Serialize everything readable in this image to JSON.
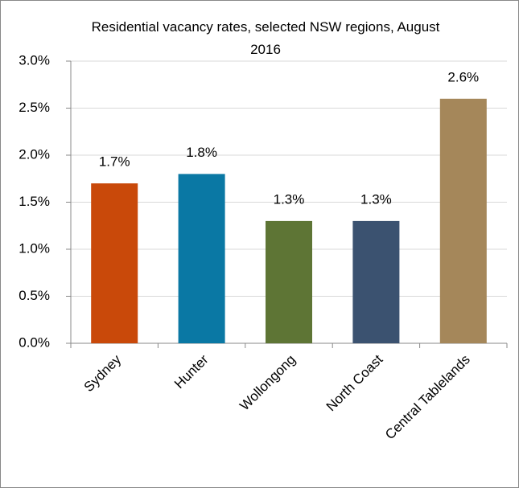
{
  "chart_data": {
    "type": "bar",
    "title": "Residential vacancy rates, selected NSW regions, August 2016",
    "categories": [
      "Sydney",
      "Hunter",
      "Wollongong",
      "North Coast",
      "Central Tablelands"
    ],
    "values": [
      1.7,
      1.8,
      1.3,
      1.3,
      2.6
    ],
    "value_labels": [
      "1.7%",
      "1.8%",
      "1.3%",
      "1.3%",
      "2.6%"
    ],
    "colors": [
      "#c9490a",
      "#0a78a4",
      "#5e7535",
      "#3b5270",
      "#a5875a"
    ],
    "ylim": [
      0,
      3
    ],
    "yticks": [
      {
        "value": 0,
        "label": "0.0%"
      },
      {
        "value": 0.5,
        "label": "0.5%"
      },
      {
        "value": 1,
        "label": "1.0%"
      },
      {
        "value": 1.5,
        "label": "1.5%"
      },
      {
        "value": 2,
        "label": "2.0%"
      },
      {
        "value": 2.5,
        "label": "2.5%"
      },
      {
        "value": 3,
        "label": "3.0%"
      }
    ],
    "grid": true
  }
}
